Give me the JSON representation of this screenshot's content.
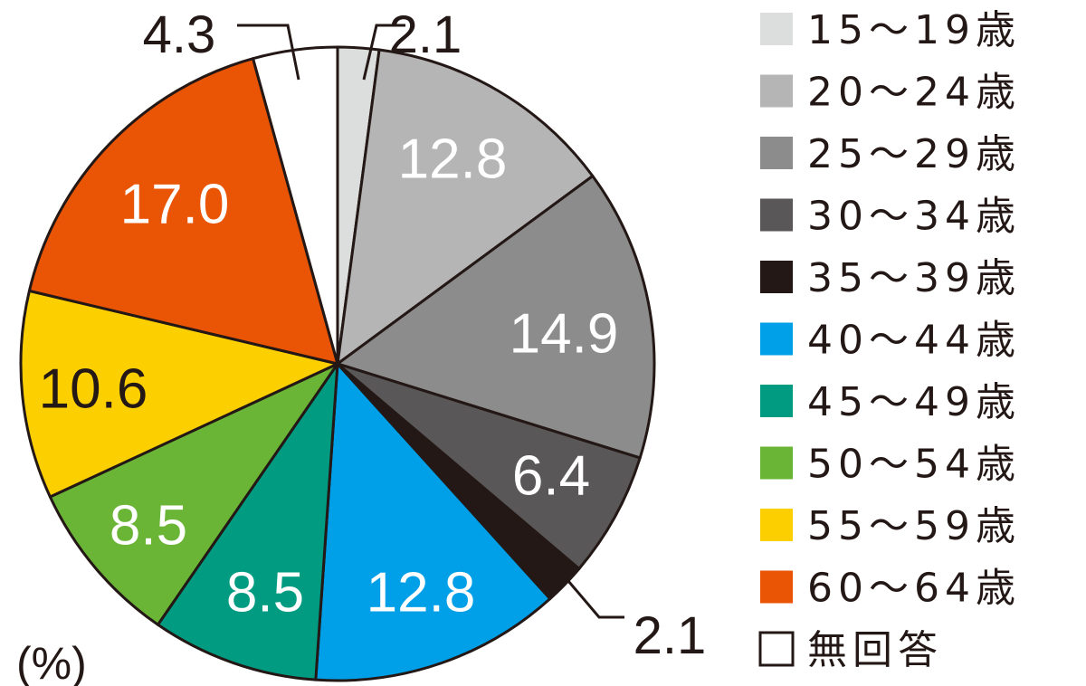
{
  "chart_data": {
    "type": "pie",
    "unit": "(%)",
    "slices": [
      {
        "label": "15～19歳",
        "value": 2.1,
        "value_label": "2.1",
        "color": "#dcdddd",
        "label_color": "#231815",
        "label_outside": true
      },
      {
        "label": "20～24歳",
        "value": 12.8,
        "value_label": "12.8",
        "color": "#b5b5b6",
        "label_color": "#ffffff",
        "label_outside": false
      },
      {
        "label": "25～29歳",
        "value": 14.9,
        "value_label": "14.9",
        "color": "#8c8c8c",
        "label_color": "#ffffff",
        "label_outside": false
      },
      {
        "label": "30～34歳",
        "value": 6.4,
        "value_label": "6.4",
        "color": "#595757",
        "label_color": "#ffffff",
        "label_outside": false
      },
      {
        "label": "35～39歳",
        "value": 2.1,
        "value_label": "2.1",
        "color": "#231815",
        "label_color": "#231815",
        "label_outside": true
      },
      {
        "label": "40～44歳",
        "value": 12.8,
        "value_label": "12.8",
        "color": "#00a0e9",
        "label_color": "#ffffff",
        "label_outside": false
      },
      {
        "label": "45～49歳",
        "value": 8.5,
        "value_label": "8.5",
        "color": "#009b80",
        "label_color": "#ffffff",
        "label_outside": false
      },
      {
        "label": "50～54歳",
        "value": 8.5,
        "value_label": "8.5",
        "color": "#6bb536",
        "label_color": "#ffffff",
        "label_outside": false
      },
      {
        "label": "55～59歳",
        "value": 10.6,
        "value_label": "10.6",
        "color": "#fcd000",
        "label_color": "#231815",
        "label_outside": false
      },
      {
        "label": "60～64歳",
        "value": 17.0,
        "value_label": "17.0",
        "color": "#e95504",
        "label_color": "#ffffff",
        "label_outside": false
      },
      {
        "label": "無回答",
        "value": 4.3,
        "value_label": "4.3",
        "color": "#ffffff",
        "label_color": "#231815",
        "label_outside": true
      }
    ],
    "legend_position": "right"
  }
}
